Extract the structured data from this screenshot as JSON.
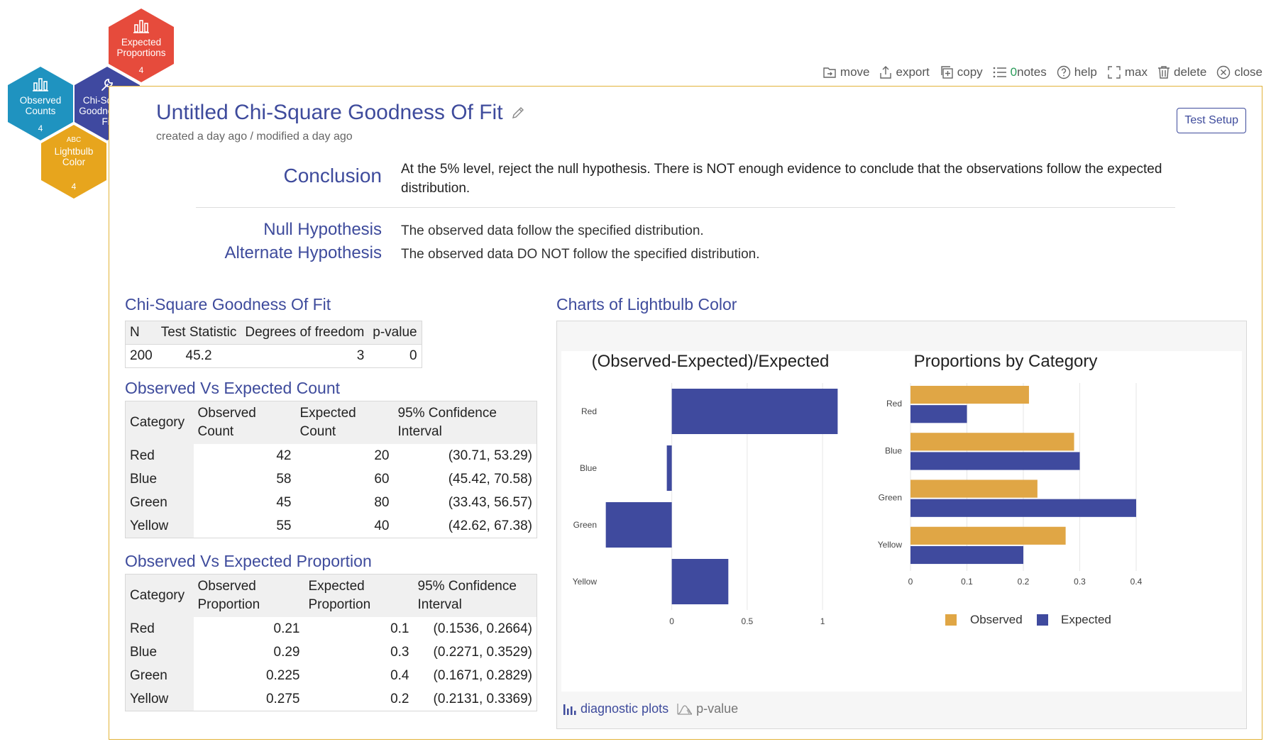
{
  "hexagons": [
    {
      "label": "Expected Proportions",
      "count": "4",
      "icon": "bar-chart-icon"
    },
    {
      "label": "Observed Counts",
      "count": "4",
      "icon": "bar-chart-icon"
    },
    {
      "label": "Chi-Square Goodness Of Fit",
      "count": "",
      "icon": "wrench-icon"
    },
    {
      "label": "Lightbulb Color",
      "count": "4",
      "icon": "abc-icon",
      "icon_text": "ABC"
    }
  ],
  "toolbar": {
    "move": "move",
    "export": "export",
    "copy": "copy",
    "notes_count": "0",
    "notes": "notes",
    "help": "help",
    "max": "max",
    "delete": "delete",
    "close": "close"
  },
  "card": {
    "title": "Untitled Chi-Square Goodness Of Fit",
    "subtitle": "created a day ago / modified a day ago",
    "test_setup": "Test Setup",
    "conclusion_label": "Conclusion",
    "conclusion_text": "At the 5% level, reject the null hypothesis. There is NOT enough evidence to conclude that the observations follow the expected distribution.",
    "null_label": "Null Hypothesis",
    "null_text": "The observed data follow the specified distribution.",
    "alt_label": "Alternate Hypothesis",
    "alt_text": "The observed data DO NOT follow the specified distribution."
  },
  "gof": {
    "title": "Chi-Square Goodness Of Fit",
    "headers": [
      "N",
      "Test Statistic",
      "Degrees of freedom",
      "p-value"
    ],
    "row": [
      "200",
      "45.2",
      "3",
      "0"
    ]
  },
  "count_table": {
    "title": "Observed Vs Expected Count",
    "headers": [
      "Category",
      "Observed Count",
      "Expected Count",
      "95% Confidence Interval"
    ],
    "rows": [
      [
        "Red",
        "42",
        "20",
        "(30.71, 53.29)"
      ],
      [
        "Blue",
        "58",
        "60",
        "(45.42, 70.58)"
      ],
      [
        "Green",
        "45",
        "80",
        "(33.43, 56.57)"
      ],
      [
        "Yellow",
        "55",
        "40",
        "(42.62, 67.38)"
      ]
    ]
  },
  "prop_table": {
    "title": "Observed Vs Expected Proportion",
    "headers": [
      "Category",
      "Observed Proportion",
      "Expected Proportion",
      "95% Confidence Interval"
    ],
    "rows": [
      [
        "Red",
        "0.21",
        "0.1",
        "(0.1536, 0.2664)"
      ],
      [
        "Blue",
        "0.29",
        "0.3",
        "(0.2271, 0.3529)"
      ],
      [
        "Green",
        "0.225",
        "0.4",
        "(0.1671, 0.2829)"
      ],
      [
        "Yellow",
        "0.275",
        "0.2",
        "(0.2131, 0.3369)"
      ]
    ]
  },
  "charts": {
    "title": "Charts of Lightbulb Color",
    "diagnostic": "diagnostic plots",
    "pvalue": "p-value"
  },
  "colors": {
    "observed": "#e0a645",
    "expected": "#3f4a9e",
    "accent": "#3e4b9c"
  },
  "chart_data": [
    {
      "type": "bar",
      "orientation": "horizontal",
      "title": "(Observed-Expected)/Expected",
      "categories": [
        "Red",
        "Blue",
        "Green",
        "Yellow"
      ],
      "values": [
        1.1,
        -0.033,
        -0.4375,
        0.375
      ],
      "xticks": [
        0,
        0.5,
        1
      ],
      "xlim": [
        -0.45,
        1.15
      ]
    },
    {
      "type": "bar",
      "orientation": "horizontal",
      "title": "Proportions by Category",
      "categories": [
        "Red",
        "Blue",
        "Green",
        "Yellow"
      ],
      "series": [
        {
          "name": "Observed",
          "values": [
            0.21,
            0.29,
            0.225,
            0.275
          ]
        },
        {
          "name": "Expected",
          "values": [
            0.1,
            0.3,
            0.4,
            0.2
          ]
        }
      ],
      "xticks": [
        0,
        0.1,
        0.2,
        0.3,
        0.4
      ],
      "xlim": [
        0,
        0.4
      ],
      "legend": "bottom"
    }
  ]
}
